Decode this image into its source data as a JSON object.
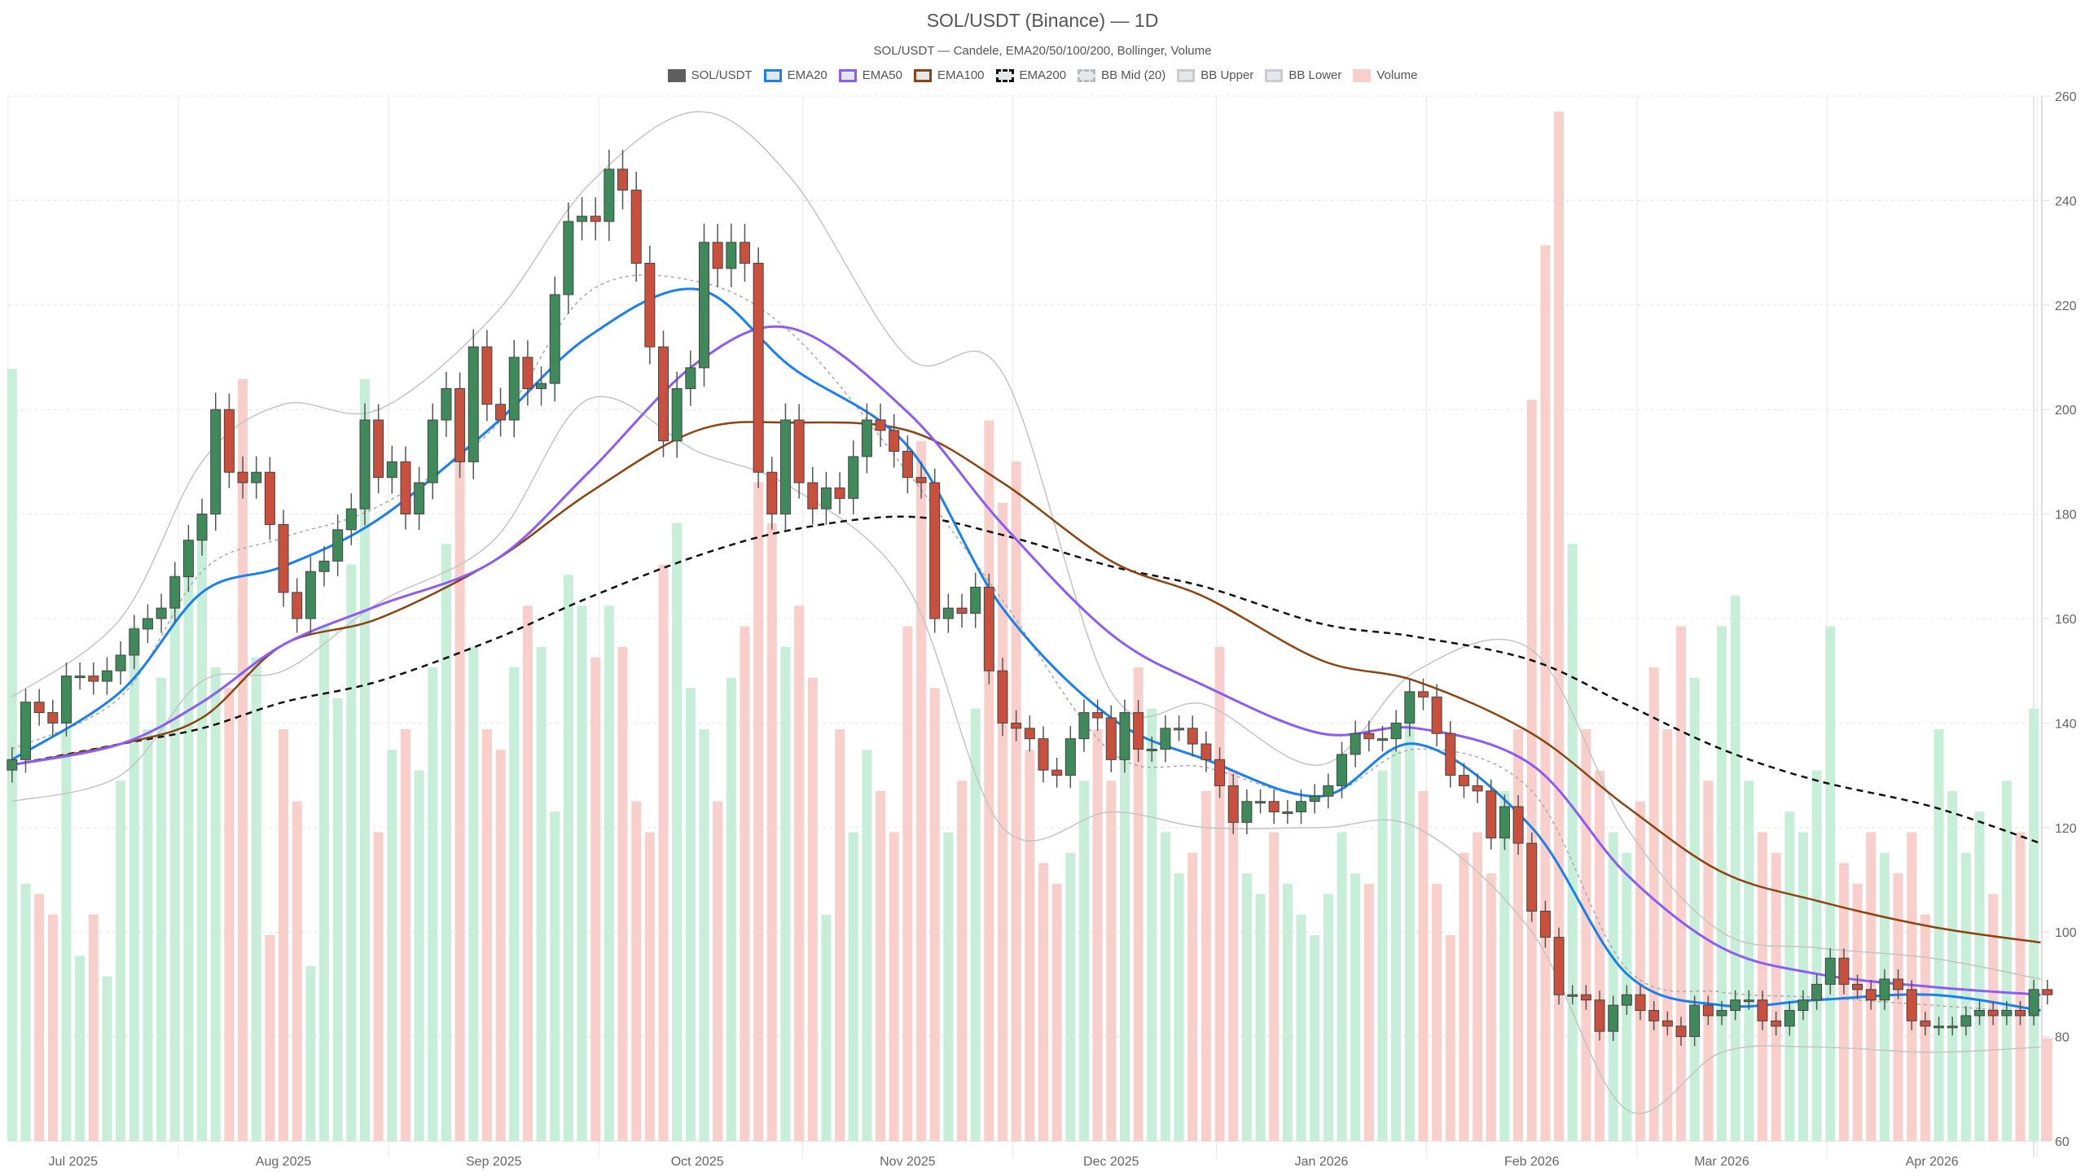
{
  "title": "SOL/USDT (Binance) — 1D",
  "subtitle": "SOL/USDT — Candele, EMA20/50/100/200, Bollinger, Volume",
  "legend": [
    {
      "label": "SOL/USDT",
      "fill": "#5f5f5f",
      "border": "#5f5f5f",
      "style": "solid"
    },
    {
      "label": "EMA20",
      "fill": "#e3e8ec",
      "border": "#1a7ff0",
      "style": "solid"
    },
    {
      "label": "EMA50",
      "fill": "#e3e8ec",
      "border": "#8b5cf6",
      "style": "solid"
    },
    {
      "label": "EMA100",
      "fill": "#e3e8ec",
      "border": "#8b4513",
      "style": "solid"
    },
    {
      "label": "EMA200",
      "fill": "#e3e8ec",
      "border": "#111111",
      "style": "dashed"
    },
    {
      "label": "BB Mid (20)",
      "fill": "#e3e8ec",
      "border": "#bbbbbb",
      "style": "dashed"
    },
    {
      "label": "BB Upper",
      "fill": "#e3e8ec",
      "border": "#cccccc",
      "style": "solid"
    },
    {
      "label": "BB Lower",
      "fill": "#e3e8ec",
      "border": "#cccccc",
      "style": "solid"
    },
    {
      "label": "Volume",
      "fill": "#f8cfca",
      "border": "#f8cfca",
      "style": "solid"
    }
  ],
  "chart_data": {
    "type": "candlestick",
    "title": "SOL/USDT (Binance) — 1D",
    "ylim": [
      60,
      260
    ],
    "y_ticks": [
      "60",
      "80",
      "100",
      "120",
      "140",
      "160",
      "180",
      "200",
      "220",
      "240",
      "260"
    ],
    "x_ticks": [
      {
        "date": "2025-07-01",
        "label": "Jul 2025"
      },
      {
        "date": "2025-08-01",
        "label": "Aug 2025"
      },
      {
        "date": "2025-09-01",
        "label": "Sep 2025"
      },
      {
        "date": "2025-10-01",
        "label": "Oct 2025"
      },
      {
        "date": "2025-11-01",
        "label": "Nov 2025"
      },
      {
        "date": "2025-12-01",
        "label": "Dec 2025"
      },
      {
        "date": "2026-01-01",
        "label": "Jan 2026"
      },
      {
        "date": "2026-02-01",
        "label": "Feb 2026"
      },
      {
        "date": "2026-03-01",
        "label": "Mar 2026"
      },
      {
        "date": "2026-04-01",
        "label": "Apr 2026"
      }
    ],
    "grid": true,
    "legend_position": "top-center",
    "colors": {
      "up": "#3f8a5a",
      "down": "#c9503c",
      "vol_up": "#c6eed8",
      "vol_down": "#f8cfca"
    },
    "candles": {
      "dates": [
        "2025-06-22",
        "2025-06-24",
        "2025-06-26",
        "2025-06-28",
        "2025-06-30",
        "2025-07-02",
        "2025-07-04",
        "2025-07-06",
        "2025-07-08",
        "2025-07-10",
        "2025-07-12",
        "2025-07-14",
        "2025-07-16",
        "2025-07-18",
        "2025-07-20",
        "2025-07-22",
        "2025-07-24",
        "2025-07-26",
        "2025-07-28",
        "2025-07-30",
        "2025-08-01",
        "2025-08-03",
        "2025-08-05",
        "2025-08-07",
        "2025-08-09",
        "2025-08-11",
        "2025-08-13",
        "2025-08-15",
        "2025-08-17",
        "2025-08-19",
        "2025-08-21",
        "2025-08-23",
        "2025-08-25",
        "2025-08-27",
        "2025-08-29",
        "2025-08-31",
        "2025-09-02",
        "2025-09-04",
        "2025-09-06",
        "2025-09-08",
        "2025-09-10",
        "2025-09-12",
        "2025-09-14",
        "2025-09-16",
        "2025-09-18",
        "2025-09-20",
        "2025-09-22",
        "2025-09-24",
        "2025-09-26",
        "2025-09-28",
        "2025-09-30",
        "2025-10-02",
        "2025-10-04",
        "2025-10-06",
        "2025-10-08",
        "2025-10-10",
        "2025-10-12",
        "2025-10-14",
        "2025-10-16",
        "2025-10-18",
        "2025-10-20",
        "2025-10-22",
        "2025-10-24",
        "2025-10-26",
        "2025-10-28",
        "2025-10-30",
        "2025-11-01",
        "2025-11-03",
        "2025-11-05",
        "2025-11-07",
        "2025-11-09",
        "2025-11-11",
        "2025-11-13",
        "2025-11-15",
        "2025-11-17",
        "2025-11-19",
        "2025-11-21",
        "2025-11-23",
        "2025-11-25",
        "2025-11-27",
        "2025-11-29",
        "2025-12-01",
        "2025-12-03",
        "2025-12-05",
        "2025-12-07",
        "2025-12-09",
        "2025-12-11",
        "2025-12-13",
        "2025-12-15",
        "2025-12-17",
        "2025-12-19",
        "2025-12-21",
        "2025-12-23",
        "2025-12-25",
        "2025-12-27",
        "2025-12-29",
        "2025-12-31",
        "2026-01-02",
        "2026-01-04",
        "2026-01-06",
        "2026-01-08",
        "2026-01-10",
        "2026-01-12",
        "2026-01-14",
        "2026-01-16",
        "2026-01-18",
        "2026-01-20",
        "2026-01-22",
        "2026-01-24",
        "2026-01-26",
        "2026-01-28",
        "2026-01-30",
        "2026-02-01",
        "2026-02-03",
        "2026-02-05",
        "2026-02-07",
        "2026-02-09",
        "2026-02-11",
        "2026-02-13",
        "2026-02-15",
        "2026-02-17",
        "2026-02-19",
        "2026-02-21",
        "2026-02-23",
        "2026-02-25",
        "2026-02-27",
        "2026-03-01",
        "2026-03-03",
        "2026-03-05",
        "2026-03-07",
        "2026-03-09",
        "2026-03-11",
        "2026-03-13",
        "2026-03-15",
        "2026-03-17",
        "2026-03-19",
        "2026-03-21",
        "2026-03-23",
        "2026-03-25",
        "2026-03-27",
        "2026-03-29",
        "2026-03-31",
        "2026-04-02",
        "2026-04-04",
        "2026-04-06",
        "2026-04-08",
        "2026-04-10",
        "2026-04-12",
        "2026-04-14",
        "2026-04-16",
        "2026-04-18"
      ],
      "close": [
        133,
        144,
        142,
        140,
        149,
        149,
        148,
        150,
        153,
        158,
        160,
        162,
        168,
        175,
        180,
        200,
        188,
        186,
        188,
        178,
        165,
        160,
        169,
        171,
        177,
        181,
        198,
        187,
        190,
        180,
        186,
        198,
        204,
        190,
        212,
        201,
        198,
        210,
        204,
        205,
        222,
        236,
        237,
        236,
        246,
        242,
        228,
        212,
        194,
        204,
        208,
        232,
        227,
        232,
        228,
        188,
        180,
        198,
        186,
        181,
        185,
        183,
        191,
        198,
        196,
        192,
        187,
        186,
        160,
        162,
        161,
        166,
        150,
        140,
        139,
        137,
        131,
        130,
        137,
        142,
        141,
        133,
        142,
        135,
        135,
        139,
        139,
        136,
        133,
        128,
        121,
        125,
        125,
        123,
        123,
        125,
        126,
        128,
        134,
        138,
        137,
        137,
        140,
        146,
        145,
        138,
        130,
        128,
        127,
        118,
        124,
        117,
        104,
        99,
        88,
        88,
        87,
        81,
        86,
        88,
        85,
        83,
        82,
        80,
        86,
        84,
        85,
        87,
        87,
        83,
        82,
        85,
        87,
        90,
        95,
        90,
        89,
        87,
        91,
        89,
        83,
        82,
        82,
        82,
        84,
        85,
        84,
        85,
        84,
        89,
        88
      ],
      "volume_relative": [
        75,
        25,
        24,
        22,
        40,
        18,
        22,
        16,
        35,
        50,
        40,
        45,
        55,
        57,
        60,
        46,
        44,
        74,
        47,
        20,
        40,
        33,
        17,
        50,
        43,
        56,
        74,
        30,
        38,
        40,
        36,
        46,
        58,
        68,
        48,
        40,
        38,
        46,
        52,
        48,
        32,
        55,
        52,
        47,
        52,
        48,
        33,
        30,
        56,
        60,
        44,
        40,
        33,
        45,
        50,
        64,
        60,
        48,
        52,
        45,
        22,
        40,
        30,
        38,
        34,
        30,
        50,
        68,
        44,
        30,
        35,
        42,
        70,
        62,
        66,
        38,
        27,
        25,
        28,
        35,
        40,
        35,
        38,
        46,
        42,
        30,
        26,
        28,
        34,
        48,
        36,
        26,
        24,
        30,
        25,
        22,
        20,
        24,
        30,
        26,
        25,
        36,
        38,
        42,
        34,
        25,
        20,
        28,
        30,
        26,
        34,
        40,
        72,
        87,
        100,
        58,
        40,
        36,
        30,
        28,
        33,
        46,
        40,
        50,
        45,
        35,
        50,
        53,
        35,
        30,
        28,
        32,
        30,
        36,
        50,
        27,
        25,
        30,
        28,
        26,
        30,
        22,
        40,
        34,
        28,
        32,
        24,
        35,
        30,
        42,
        10
      ]
    },
    "lines": {
      "dates": [
        "2025-06-22",
        "2025-07-08",
        "2025-07-20",
        "2025-08-01",
        "2025-08-15",
        "2025-09-01",
        "2025-09-15",
        "2025-10-01",
        "2025-10-15",
        "2025-11-01",
        "2025-11-15",
        "2025-12-01",
        "2025-12-15",
        "2026-01-01",
        "2026-01-15",
        "2026-02-01",
        "2026-02-15",
        "2026-03-01",
        "2026-03-15",
        "2026-04-01",
        "2026-04-17"
      ],
      "series": [
        {
          "name": "EMA20",
          "color": "#1a7ff0",
          "width": 3,
          "dash": "",
          "values": [
            133,
            146,
            165,
            170,
            179,
            197,
            214,
            223,
            208,
            193,
            162,
            141,
            133,
            126,
            136,
            120,
            92,
            86,
            87,
            88,
            85
          ]
        },
        {
          "name": "EMA50",
          "color": "#8b5cf6",
          "width": 3,
          "dash": "",
          "values": [
            132,
            136,
            144,
            155,
            162.5,
            171,
            188,
            209,
            215.5,
            199.5,
            178,
            157,
            147,
            138,
            139,
            132,
            111,
            97,
            92,
            89.5,
            88
          ]
        },
        {
          "name": "EMA100",
          "color": "#8b4513",
          "width": 2.5,
          "dash": "",
          "values": [
            132,
            136,
            141,
            155,
            160,
            171,
            184,
            196,
            197.5,
            196,
            186,
            171,
            164,
            152,
            148,
            138,
            124,
            111.5,
            106,
            101,
            98
          ]
        },
        {
          "name": "EMA200",
          "color": "#111111",
          "width": 2.5,
          "dash": "8,6",
          "values": [
            132,
            136,
            139,
            144,
            148,
            156,
            164,
            172,
            177,
            179.5,
            176,
            170,
            166,
            159,
            156.5,
            152,
            143.5,
            135,
            129,
            124,
            117
          ]
        },
        {
          "name": "BB Mid (20)",
          "color": "#aaaaaa",
          "width": 1.5,
          "dash": "4,4",
          "values": [
            135,
            145,
            169,
            175.5,
            181.5,
            196.5,
            222.5,
            224.5,
            214.5,
            188,
            163.5,
            134.5,
            131.5,
            126,
            135,
            127,
            93,
            88.5,
            87.5,
            86,
            84.5
          ]
        },
        {
          "name": "BB Upper",
          "color": "#c4c4c4",
          "width": 1.5,
          "dash": "",
          "values": [
            145,
            160,
            190,
            201,
            200,
            218,
            243,
            257,
            244,
            210,
            207,
            146,
            143.5,
            132,
            150,
            154,
            120,
            100,
            97,
            95,
            91
          ]
        },
        {
          "name": "BB Lower",
          "color": "#c4c4c4",
          "width": 1.5,
          "dash": "",
          "values": [
            125,
            130,
            148,
            150,
            163,
            175,
            202,
            192,
            185,
            166,
            120,
            123,
            120,
            120,
            120,
            100,
            66,
            77,
            78,
            77,
            78
          ]
        }
      ]
    }
  }
}
